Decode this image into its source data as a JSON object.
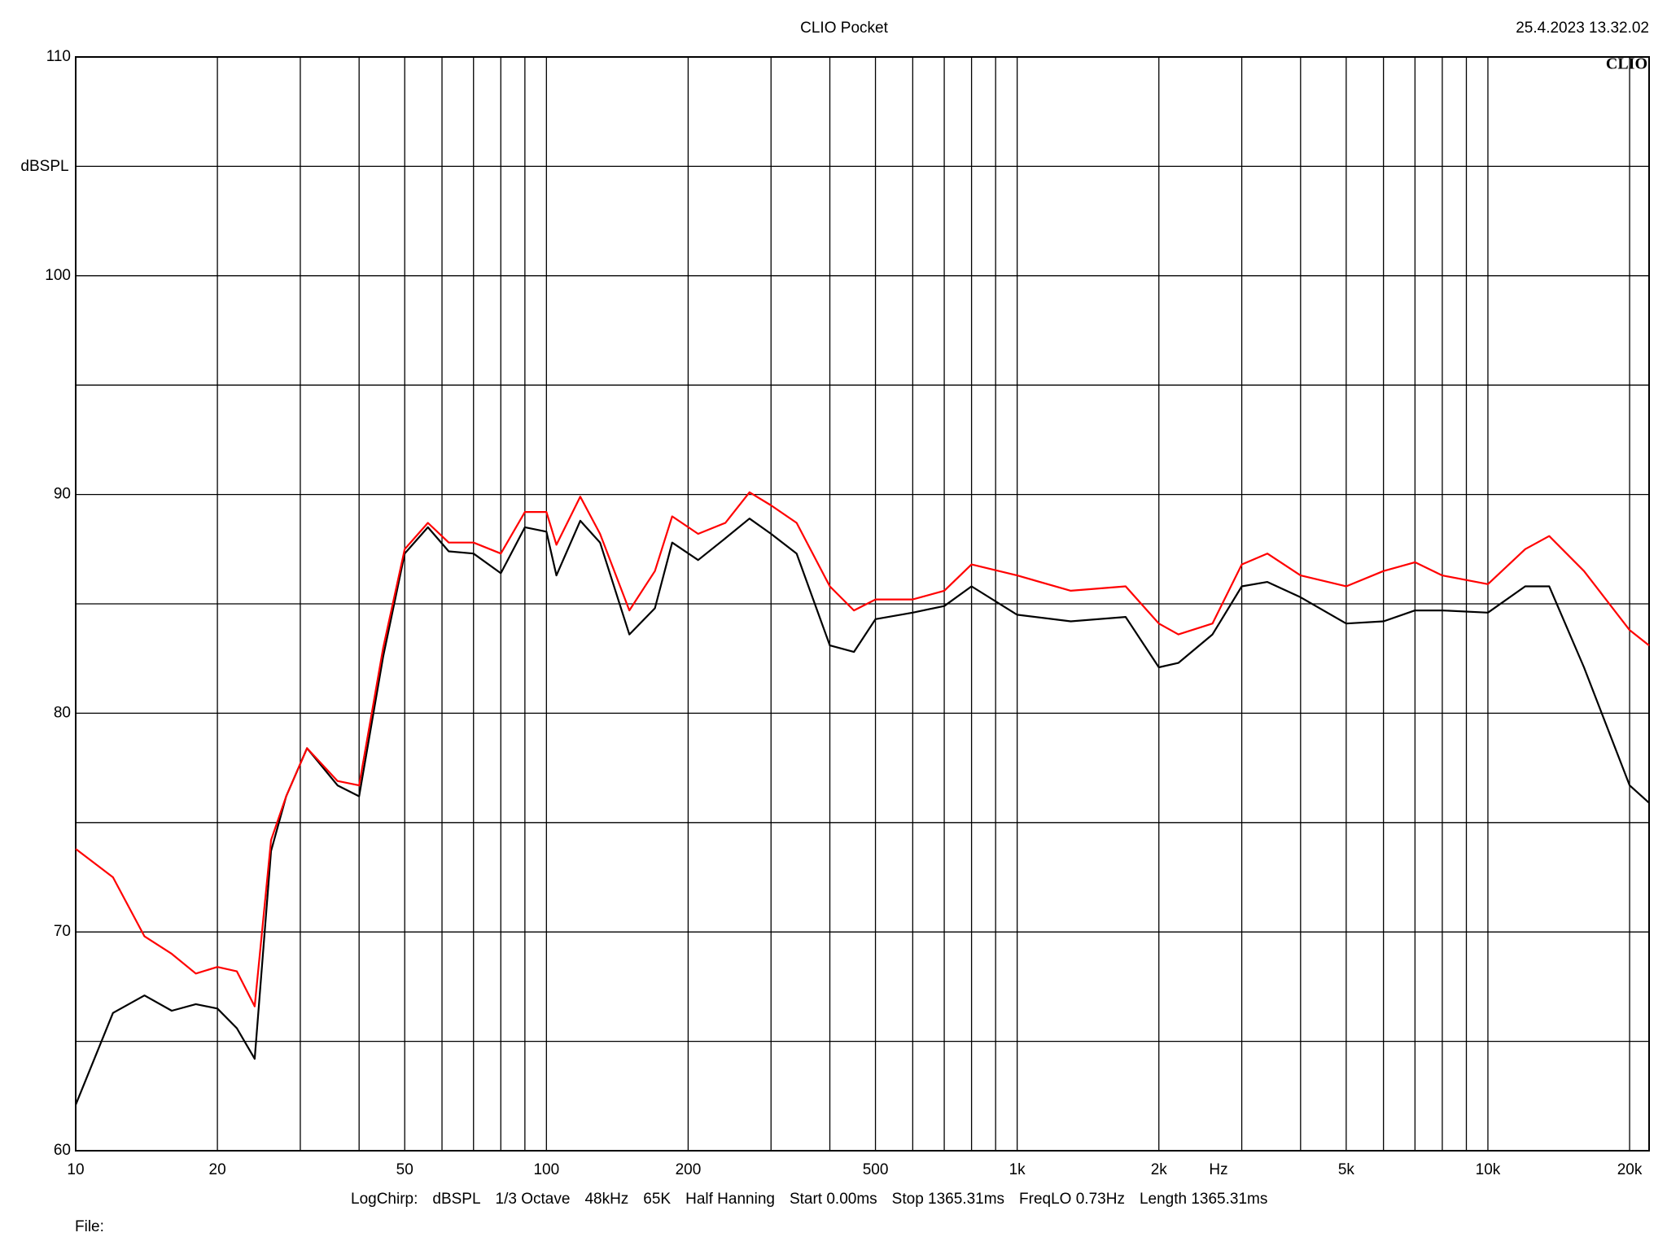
{
  "chart_data": {
    "type": "line",
    "title": "CLIO Pocket",
    "timestamp": "25.4.2023 13.32.02",
    "logo": "CLIO",
    "y_label": "dBSPL",
    "x_label": "Hz",
    "settings_line": [
      "LogChirp:",
      "dBSPL",
      "1/3 Octave",
      "48kHz",
      "65K",
      "Half Hanning",
      "Start 0.00ms",
      "Stop 1365.31ms",
      "FreqLO 0.73Hz",
      "Length 1365.31ms"
    ],
    "file_label": "File:",
    "x_log": true,
    "grid": true,
    "xlim": [
      10,
      22000
    ],
    "ylim": [
      60,
      110
    ],
    "xticks": [
      10,
      20,
      50,
      100,
      200,
      500,
      {
        "value": 1000,
        "label": "1k"
      },
      {
        "value": 2000,
        "label": "2k"
      },
      {
        "value": 5000,
        "label": "5k"
      },
      {
        "value": 10000,
        "label": "10k"
      },
      {
        "value": 20000,
        "label": "20k"
      }
    ],
    "xminor": [
      30,
      40,
      60,
      70,
      80,
      90,
      300,
      400,
      600,
      700,
      800,
      900,
      3000,
      4000,
      6000,
      7000,
      8000,
      9000
    ],
    "yticks": [
      60,
      70,
      80,
      90,
      100,
      110
    ],
    "yminor": [
      65,
      75,
      85,
      95,
      105
    ],
    "x": [
      10,
      12,
      14,
      16,
      18,
      20,
      22,
      24,
      26,
      28,
      31,
      36,
      40,
      45,
      50,
      56,
      62,
      70,
      80,
      90,
      100,
      105,
      118,
      130,
      150,
      170,
      185,
      210,
      240,
      270,
      300,
      340,
      400,
      450,
      500,
      600,
      700,
      800,
      1000,
      1300,
      1700,
      2000,
      2200,
      2600,
      3000,
      3400,
      4000,
      5000,
      6000,
      7000,
      8000,
      10000,
      12000,
      13500,
      16000,
      20000,
      22000
    ],
    "series": [
      {
        "color": "#000000",
        "values": [
          62.1,
          66.3,
          67.1,
          66.4,
          66.7,
          66.5,
          65.6,
          64.2,
          73.7,
          76.2,
          78.4,
          76.7,
          76.2,
          82.6,
          87.3,
          88.5,
          87.4,
          87.3,
          86.4,
          88.5,
          88.3,
          86.3,
          88.8,
          87.8,
          83.6,
          84.8,
          87.8,
          87,
          88,
          88.9,
          88.2,
          87.3,
          83.1,
          82.8,
          84.3,
          84.6,
          84.9,
          85.8,
          84.5,
          84.2,
          84.4,
          82.1,
          82.3,
          83.6,
          85.8,
          86,
          85.3,
          84.1,
          84.2,
          84.7,
          84.7,
          84.6,
          85.8,
          85.8,
          82.1,
          76.7,
          75.9
        ]
      },
      {
        "color": "#ff0000",
        "values": [
          73.8,
          72.5,
          69.8,
          69,
          68.1,
          68.4,
          68.2,
          66.6,
          74.2,
          76.2,
          78.4,
          76.9,
          76.7,
          83,
          87.5,
          88.7,
          87.8,
          87.8,
          87.3,
          89.2,
          89.2,
          87.7,
          89.9,
          88.2,
          84.7,
          86.5,
          89,
          88.2,
          88.7,
          90.1,
          89.5,
          88.7,
          85.8,
          84.7,
          85.2,
          85.2,
          85.6,
          86.8,
          86.3,
          85.6,
          85.8,
          84.1,
          83.6,
          84.1,
          86.8,
          87.3,
          86.3,
          85.8,
          86.5,
          86.9,
          86.3,
          85.9,
          87.5,
          88.1,
          86.5,
          83.8,
          83.1
        ]
      }
    ]
  }
}
